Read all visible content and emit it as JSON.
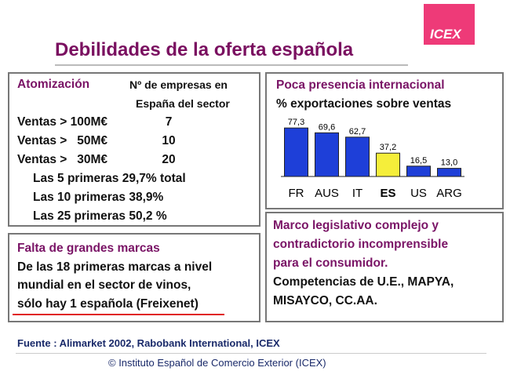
{
  "header": {
    "title": "Debilidades de la oferta española",
    "logo": "ICEX"
  },
  "atomizacion": {
    "title": "Atomización",
    "column_header": [
      "Nº de empresas en",
      "España del sector"
    ],
    "rows": [
      [
        "Ventas > 100M€",
        "7"
      ],
      [
        "Ventas >   50M€",
        "10"
      ],
      [
        "Ventas >   30M€",
        "20"
      ]
    ],
    "shares": [
      "Las 5 primeras 29,7% total",
      "Las 10 primeras 38,9%",
      "Las 25 primeras 50,2 %"
    ]
  },
  "marcas": {
    "title": "Falta de grandes marcas",
    "lines": [
      "De las 18 primeras marcas a nivel",
      "mundial en el sector de vinos,",
      "sólo hay 1 española (Freixenet)"
    ]
  },
  "chart_data": {
    "type": "bar",
    "title": "Poca presencia internacional",
    "subtitle": "% exportaciones sobre ventas",
    "categories": [
      "FR",
      "AUS",
      "IT",
      "ES",
      "US",
      "ARG"
    ],
    "values": [
      77.3,
      69.6,
      62.7,
      37.2,
      16.5,
      13.0
    ],
    "value_labels": [
      "77,3",
      "69,6",
      "62,7",
      "37,2",
      "16,5",
      "13,0"
    ],
    "colors": [
      "#1e3fd8",
      "#1e3fd8",
      "#1e3fd8",
      "#f5ee3a",
      "#1e3fd8",
      "#1e3fd8"
    ]
  },
  "marco": {
    "highlight": [
      "Marco legislativo complejo y",
      "contradictorio incomprensible",
      "para el consumidor."
    ],
    "lines": [
      "Competencias de U.E., MAPYA,",
      "MISAYCO, CC.AA."
    ]
  },
  "footer": {
    "source": "Fuente : Alimarket 2002, Rabobank International, ICEX",
    "copyright": "© Instituto Español de Comercio Exterior (ICEX)"
  }
}
